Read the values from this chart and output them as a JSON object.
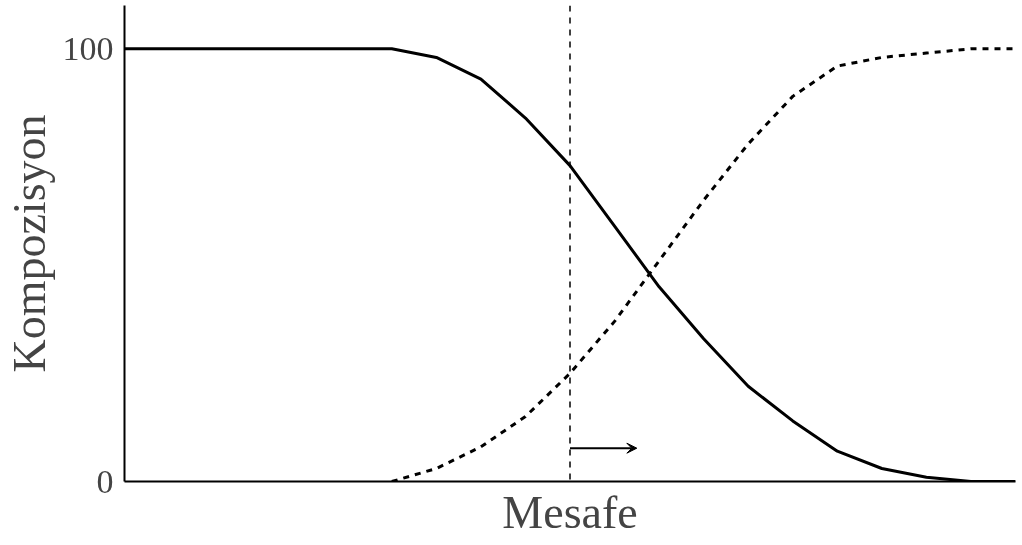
{
  "chart_data": {
    "type": "line",
    "xlabel": "Mesafe",
    "ylabel": "Kompozisyon",
    "categories": [
      null,
      null,
      null,
      null,
      null,
      null,
      null,
      null,
      null,
      null,
      null,
      null,
      null,
      null,
      null,
      null,
      null,
      null,
      null,
      null,
      null
    ],
    "series": [
      {
        "color": "#000000",
        "line_style": "solid",
        "values": [
          100,
          100,
          100,
          100,
          100,
          100,
          100,
          98,
          93,
          84,
          73,
          59,
          45,
          33,
          22,
          14,
          7,
          3,
          1,
          0,
          0
        ]
      },
      {
        "color": "#000000",
        "line_style": "dashed",
        "values": [
          null,
          null,
          null,
          null,
          null,
          null,
          0,
          3,
          8,
          15,
          25,
          37,
          51,
          65,
          78,
          89,
          96,
          98,
          99,
          100,
          100
        ]
      }
    ],
    "ylim": [
      0,
      110
    ],
    "yticks": [
      0,
      100
    ],
    "tick_labels": "y",
    "grid": false,
    "marker": "none"
  }
}
